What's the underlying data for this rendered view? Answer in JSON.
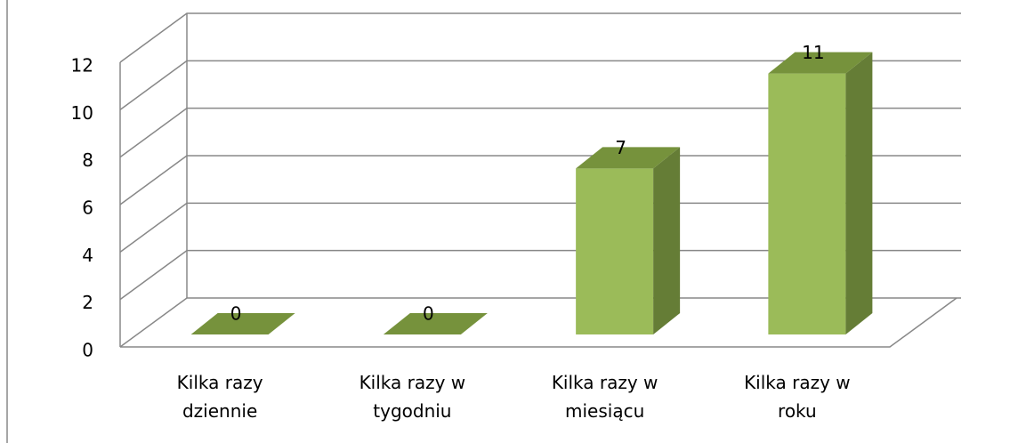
{
  "chart_data": {
    "type": "bar3d",
    "categories": [
      "Kilka razy dziennie",
      "Kilka razy w tygodniu",
      "Kilka razy w miesiącu",
      "Kilka razy w roku"
    ],
    "values": [
      0,
      0,
      7,
      11
    ],
    "color": "#9bbb59",
    "ylim": [
      0,
      12
    ],
    "yticks": [
      0,
      2,
      4,
      6,
      8,
      10,
      12
    ],
    "grid": true
  }
}
